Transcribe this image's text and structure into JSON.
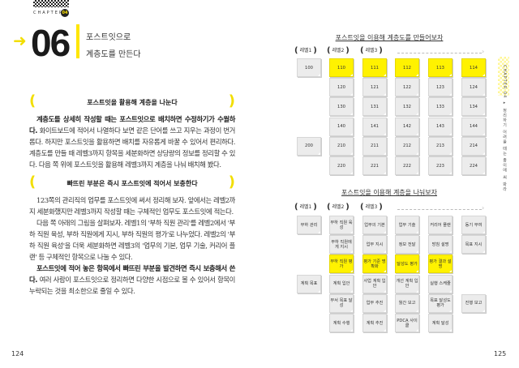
{
  "left": {
    "chapter_label": "CHAPTER",
    "chapter_num": "04",
    "section_num": "06",
    "title_line1": "포스트잇으로",
    "title_line2": "계층도를 만든다",
    "heading1": "포스트잇을 활용해 계층을 나눈다",
    "para1_bold": "계층도를 상세히 작성할 때는 포스트잇으로 배치하면 수정하기가 수월하다.",
    "para1_rest": " 화이트보드에 적어서 나열하다 보면 같은 단어를 쓰고 지우는 과정이 번거롭다. 하지만 포스트잇을 활용하면 배치를 자유롭게 바꿀 수 있어서 편리하다. 계층도를 만들 때 레벨3까지 항목을 세분화하면 상당량의 정보를 정리할 수 있다. 다음 쪽 위에 포스트잇을 활용해 레벨3까지 계층을 나눠 배치해 봤다.",
    "heading2": "빠뜨린 부분은 즉시 포스트잇에 적어서 보충한다",
    "para2": "123쪽의 관리직의 업무를 포스트잇에 써서 정리해 보자. 앞에서는 레벨2까지 세분화했지만 레벨3까지 작성할 때는 구체적인 업무도 포스트잇에 적는다.",
    "para3": "다음 쪽 아래의 그림을 살펴보자. 레벨1의 '부하 직원 관리'를 레벨2에서 '부하 직원 육성, 부하 직원에게 지시, 부하 직원의 평가'로 나누었다. 레벨2의 '부하 직원 육성'을 더욱 세분화하면 레벨3의 '업무의 기본, 업무 기술, 커리어 플랜' 등 구체적인 항목으로 나눌 수 있다.",
    "para4_bold": "포스트잇에 적어 놓은 항목에서 빠뜨린 부분을 발견하면 즉시 보충해서 쓴다.",
    "para4_rest": " 여러 사람이 포스트잇으로 정리하면 다양한 시점으로 볼 수 있어서 항목이 누락되는 것을 최소한으로 줄일 수 있다.",
    "page_number": "124"
  },
  "right": {
    "levels": [
      "레벨1",
      "레벨2",
      "레벨3"
    ],
    "chart1_title": "포스트잇을 이용해 계층도를 만들어보자",
    "chart1_rows": [
      [
        {
          "t": "100"
        },
        {
          "t": "110",
          "y": true
        },
        {
          "t": "111",
          "y": true
        },
        {
          "t": "112",
          "y": true
        },
        {
          "t": "113",
          "y": true
        },
        {
          "t": "114",
          "y": true
        }
      ],
      [
        null,
        {
          "t": "120"
        },
        {
          "t": "121"
        },
        {
          "t": "122"
        },
        {
          "t": "123"
        },
        {
          "t": "124"
        }
      ],
      [
        null,
        {
          "t": "130"
        },
        {
          "t": "131"
        },
        {
          "t": "132"
        },
        {
          "t": "133"
        },
        {
          "t": "134"
        }
      ],
      [
        null,
        {
          "t": "140"
        },
        {
          "t": "141"
        },
        {
          "t": "142"
        },
        {
          "t": "143"
        },
        {
          "t": "144"
        }
      ],
      [
        {
          "t": "200"
        },
        {
          "t": "210"
        },
        {
          "t": "211"
        },
        {
          "t": "212"
        },
        {
          "t": "213"
        },
        {
          "t": "214"
        }
      ],
      [
        null,
        {
          "t": "220"
        },
        {
          "t": "221"
        },
        {
          "t": "222"
        },
        {
          "t": "223"
        },
        {
          "t": "224"
        }
      ]
    ],
    "chart2_title": "포스트잇을 이용해 계층을 나눠보자",
    "chart2_rows": [
      [
        {
          "t": "부하 관리"
        },
        {
          "t": "부하 직원 육성"
        },
        {
          "t": "업무의 기본"
        },
        {
          "t": "업무 기술"
        },
        {
          "t": "커리어 플랜"
        },
        {
          "t": "동기 부여"
        }
      ],
      [
        null,
        {
          "t": "부하 직원에게 지시"
        },
        {
          "t": "업무 지시"
        },
        {
          "t": "정보 전달"
        },
        {
          "t": "방침 설명"
        },
        {
          "t": "목표 지시"
        }
      ],
      [
        null,
        {
          "t": "부하 직원 평가",
          "y": true
        },
        {
          "t": "평가 기준 명확화",
          "y": true
        },
        {
          "t": "달성도 평가",
          "y": true
        },
        {
          "t": "평가 결과 설명",
          "y": true
        },
        null
      ],
      [
        {
          "t": "계획 목표"
        },
        {
          "t": "계획 입안"
        },
        {
          "t": "사업 계획 입안"
        },
        {
          "t": "개선 계획 입안"
        },
        {
          "t": "실행 스케줄"
        },
        null
      ],
      [
        null,
        {
          "t": "부서 목표 달성"
        },
        {
          "t": "업무 추진"
        },
        {
          "t": "월간 보고"
        },
        {
          "t": "목표 달성도 평가"
        },
        {
          "t": "진행 보고"
        }
      ],
      [
        null,
        {
          "t": "계획 수행"
        },
        {
          "t": "계획 추진"
        },
        {
          "t": "PDCA 사이클"
        },
        {
          "t": "계획 달성"
        },
        null
      ]
    ],
    "side_tab": "CHAPTER 04 ▸ 정리하기 어려울 때는 종이에 써 봐라",
    "page_number": "125"
  },
  "colors": {
    "accent": "#fff200",
    "note": "#ececec"
  }
}
